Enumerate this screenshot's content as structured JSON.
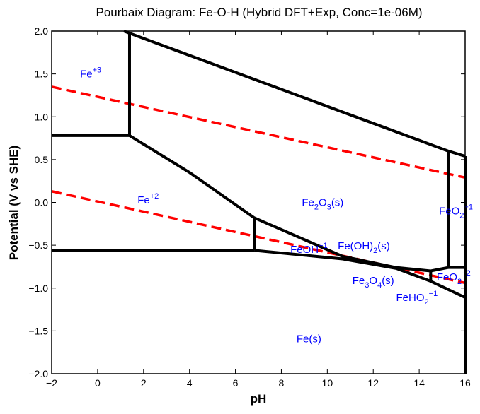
{
  "chart_data": {
    "type": "line",
    "title": "Pourbaix Diagram: Fe-O-H (Hybrid DFT+Exp, Conc=1e-06M)",
    "xlabel": "pH",
    "ylabel": "Potential (V vs SHE)",
    "xlim": [
      -2,
      16
    ],
    "ylim": [
      -2.0,
      2.0
    ],
    "xticks": [
      -2,
      0,
      2,
      4,
      6,
      8,
      10,
      12,
      14,
      16
    ],
    "yticks": [
      "-2.0",
      "-1.5",
      "-1.0",
      "-0.5",
      "0.0",
      "0.5",
      "1.0",
      "1.5",
      "2.0"
    ],
    "grid": false,
    "boundary_color": "#000000",
    "water_line_color": "#ff0000",
    "label_color": "#0000ff",
    "boundaries": [
      [
        [
          1.14,
          2.0
        ],
        [
          15.26,
          0.6
        ],
        [
          16,
          0.54
        ]
      ],
      [
        [
          1.39,
          1.975
        ],
        [
          1.39,
          0.78
        ]
      ],
      [
        [
          -2,
          0.78
        ],
        [
          1.39,
          0.78
        ]
      ],
      [
        [
          1.39,
          0.78
        ],
        [
          4.0,
          0.35
        ],
        [
          6.82,
          -0.18
        ]
      ],
      [
        [
          6.82,
          -0.18
        ],
        [
          6.82,
          -0.56
        ]
      ],
      [
        [
          -2,
          -0.56
        ],
        [
          6.82,
          -0.56
        ]
      ],
      [
        [
          6.82,
          -0.18
        ],
        [
          10.67,
          -0.63
        ],
        [
          13.0,
          -0.76
        ],
        [
          14.5,
          -0.8
        ],
        [
          15.26,
          -0.76
        ]
      ],
      [
        [
          6.82,
          -0.56
        ],
        [
          10.67,
          -0.66
        ],
        [
          13.0,
          -0.77
        ],
        [
          14.5,
          -0.92
        ],
        [
          16,
          -1.11
        ]
      ],
      [
        [
          15.26,
          0.6
        ],
        [
          15.26,
          -0.76
        ]
      ],
      [
        [
          15.26,
          -0.76
        ],
        [
          16,
          -0.76
        ]
      ],
      [
        [
          14.5,
          -0.8
        ],
        [
          14.5,
          -0.92
        ]
      ],
      [
        [
          16,
          0.54
        ],
        [
          16,
          -2.0
        ]
      ]
    ],
    "water_lines": [
      [
        [
          -2,
          1.35
        ],
        [
          16,
          0.29
        ]
      ],
      [
        [
          -2,
          0.13
        ],
        [
          16,
          -0.94
        ]
      ]
    ],
    "regions": [
      {
        "base": "Fe",
        "sup": "+3",
        "sub": "",
        "after": "",
        "ph": -0.3,
        "v": 1.5
      },
      {
        "base": "Fe",
        "sup": "+2",
        "sub": "",
        "after": "",
        "ph": 2.2,
        "v": 0.03
      },
      {
        "base": "Fe",
        "sub": "2",
        "mid": "O",
        "sub2": "3",
        "after": "(s)",
        "ph": 9.8,
        "v": 0.0
      },
      {
        "base": "FeO",
        "sub": "2",
        "sup": "−1",
        "after": "",
        "ph": 15.6,
        "v": -0.1
      },
      {
        "base": "FeOH",
        "sup": "+1",
        "sub": "",
        "after": "",
        "ph": 9.2,
        "v": -0.55
      },
      {
        "base": "Fe(OH)",
        "sub": "2",
        "sup": "",
        "after": "(s)",
        "ph": 11.9,
        "v": -0.74
      },
      {
        "base": "Fe",
        "sub": "3",
        "mid": "O",
        "sub2": "4",
        "after": "(s)",
        "ph": 12.0,
        "v": -0.73
      },
      {
        "base": "FeHO",
        "sub": "2",
        "sup": "−1",
        "after": "",
        "ph": 13.9,
        "v": -0.82
      },
      {
        "base": "FeO",
        "sub": "2",
        "sup": "−2",
        "after": "",
        "ph": 15.5,
        "v": -0.87
      },
      {
        "base": "Fe(s)",
        "sup": "",
        "sub": "",
        "after": "",
        "ph": 9.2,
        "v": -1.59
      }
    ]
  }
}
